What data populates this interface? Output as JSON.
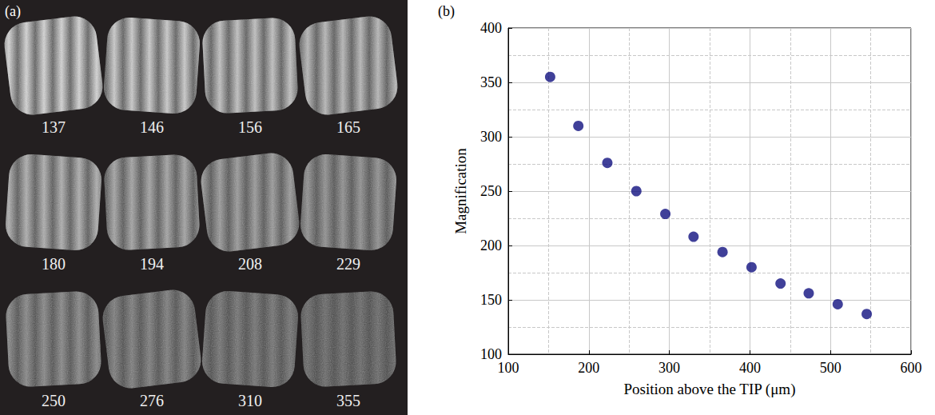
{
  "panel_a": {
    "label": "(a)",
    "captions": [
      137,
      146,
      156,
      165,
      180,
      194,
      208,
      229,
      250,
      276,
      310,
      355
    ]
  },
  "chart_data": {
    "type": "scatter",
    "label": "(b)",
    "x_label": "Position above the TIP (μm)",
    "y_label": "Magnification",
    "x": [
      152,
      187,
      223,
      259,
      295,
      330,
      366,
      402,
      438,
      473,
      509,
      545
    ],
    "values": [
      355,
      310,
      276,
      250,
      229,
      208,
      194,
      180,
      165,
      156,
      146,
      137
    ],
    "color": "#101080",
    "marker": "circle",
    "xlim": [
      100,
      600
    ],
    "xticks": [
      100,
      200,
      300,
      400,
      500,
      600
    ],
    "ylim": [
      100,
      400
    ],
    "yticks": [
      100,
      150,
      200,
      250,
      300,
      350,
      400
    ],
    "grid": true
  }
}
